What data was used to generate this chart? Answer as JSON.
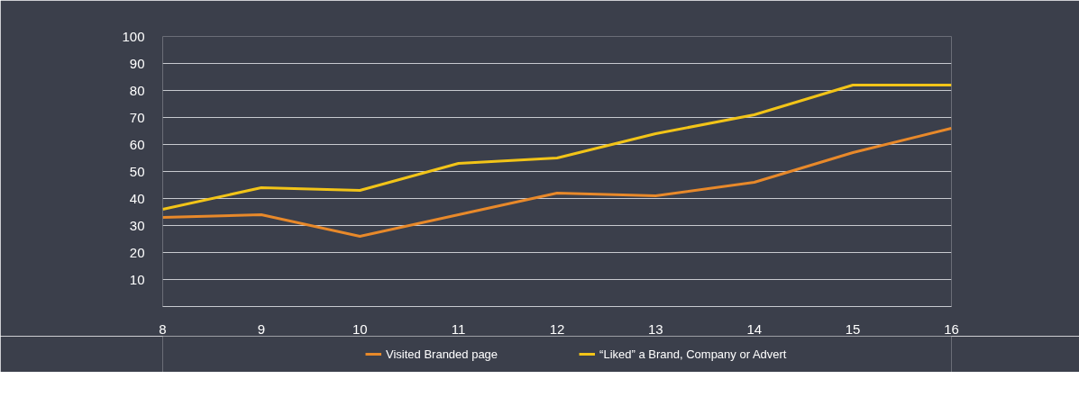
{
  "chart_data": {
    "type": "line",
    "x": [
      8,
      9,
      10,
      11,
      12,
      13,
      14,
      15,
      16
    ],
    "series": [
      {
        "name": "Visited Branded page",
        "color": "#e8892a",
        "values": [
          33,
          34,
          26,
          34,
          42,
          41,
          46,
          57,
          66
        ]
      },
      {
        "name": "“Liked” a Brand, Company or Advert",
        "color": "#f2c418",
        "values": [
          36,
          44,
          43,
          53,
          55,
          64,
          71,
          82,
          82
        ]
      }
    ],
    "xlim": [
      8,
      16
    ],
    "xticks": [
      8,
      9,
      10,
      11,
      12,
      13,
      14,
      15,
      16
    ],
    "ylim": [
      0,
      100
    ],
    "yticks": [
      10,
      20,
      30,
      40,
      50,
      60,
      70,
      80,
      90,
      100
    ],
    "grid": "y",
    "legend": "bottom",
    "marker": "none",
    "line_style": "solid"
  }
}
